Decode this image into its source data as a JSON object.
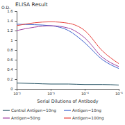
{
  "chart_data": {
    "type": "line",
    "title": "ELISA Result",
    "x_label": "Serial Dilutions of Antibody",
    "y_label": "O.D.",
    "log": "x",
    "x": [
      0.01,
      0.003,
      0.001,
      0.0003,
      0.0001,
      3e-05,
      1e-05
    ],
    "xlim": [
      0.01,
      1e-05
    ],
    "xticks": [
      {
        "value": 0.01,
        "label": "10⁻²"
      },
      {
        "value": 0.001,
        "label": "10⁻³"
      },
      {
        "value": 0.0001,
        "label": "10⁻⁴"
      },
      {
        "value": 1e-05,
        "label": "10⁻⁵"
      }
    ],
    "ylim": [
      0,
      1.6
    ],
    "yticks": [
      0,
      0.2,
      0.4,
      0.6,
      0.8,
      1,
      1.2,
      1.4,
      1.6
    ],
    "grid": false,
    "legend": "bottom",
    "series": [
      {
        "name": "Control Antigen=10ng",
        "color": "#1f4e5f",
        "line_style": "solid",
        "values": [
          0.12,
          0.11,
          0.1,
          0.1,
          0.09,
          0.09,
          0.08
        ]
      },
      {
        "name": "Antigen=10ng",
        "color": "#3a5fcd",
        "line_style": "solid",
        "values": [
          1.33,
          1.32,
          1.3,
          1.2,
          0.95,
          0.6,
          0.42
        ]
      },
      {
        "name": "Antigen=50ng",
        "color": "#a040a0",
        "line_style": "solid",
        "values": [
          1.2,
          1.27,
          1.3,
          1.25,
          1.05,
          0.65,
          0.46
        ]
      },
      {
        "name": "Antigen=100ng",
        "color": "#e8403a",
        "line_style": "solid",
        "values": [
          1.3,
          1.36,
          1.38,
          1.35,
          1.2,
          0.78,
          0.52
        ]
      }
    ]
  }
}
